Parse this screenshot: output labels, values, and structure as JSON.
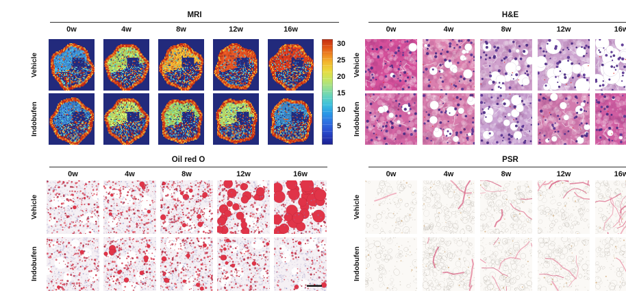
{
  "figure": {
    "timepoints": [
      "0w",
      "4w",
      "8w",
      "12w",
      "16w"
    ],
    "groups": [
      "Vehicle",
      "Indobufen"
    ],
    "panels": [
      {
        "id": "mri",
        "title": "MRI",
        "palette": {
          "background": "#222a7c",
          "ring_red": "#c22d16",
          "ring_orange": "#e1571c",
          "ring_yellow": "#f3c83c",
          "cyan_speckle": "#56c8d0"
        },
        "colorbar": {
          "tick_labels": [
            "30",
            "25",
            "20",
            "15",
            "10",
            "5"
          ]
        },
        "rows": [
          {
            "group": "Vehicle",
            "cells": [
              {
                "liver_color": "#3d8fd2"
              },
              {
                "liver_color": "#aed465"
              },
              {
                "liver_color": "#edae34"
              },
              {
                "liver_color": "#e05324"
              },
              {
                "liver_color": "#d63a1e"
              }
            ]
          },
          {
            "group": "Indobufen",
            "cells": [
              {
                "liver_color": "#3a7ec6"
              },
              {
                "liver_color": "#b8d868"
              },
              {
                "liver_color": "#9ed06a"
              },
              {
                "liver_color": "#b2d66a"
              },
              {
                "liver_color": "#3c86c4"
              }
            ]
          }
        ]
      },
      {
        "id": "he",
        "title": "H&E",
        "palette": {
          "nucleus": "#4c2c84",
          "vacuole": "#ffffff"
        },
        "rows": [
          {
            "group": "Vehicle",
            "cells": [
              {
                "base": "#d4509a",
                "vacuoles": 0.06,
                "vacuole_size": 0.8
              },
              {
                "base": "#db7fae",
                "vacuoles": 0.32,
                "vacuole_size": 0.9
              },
              {
                "base": "#cfa0cc",
                "vacuoles": 0.45,
                "vacuole_size": 1.1
              },
              {
                "base": "#cda4d0",
                "vacuoles": 0.5,
                "vacuole_size": 1.5
              },
              {
                "base": "#cfaad4",
                "vacuoles": 0.55,
                "vacuole_size": 1.8
              }
            ]
          },
          {
            "group": "Indobufen",
            "cells": [
              {
                "base": "#d467a4",
                "vacuoles": 0.2,
                "vacuole_size": 0.8
              },
              {
                "base": "#d77cac",
                "vacuoles": 0.3,
                "vacuole_size": 0.9
              },
              {
                "base": "#c9a2d2",
                "vacuoles": 0.4,
                "vacuole_size": 1.0
              },
              {
                "base": "#d27bae",
                "vacuoles": 0.28,
                "vacuole_size": 0.9
              },
              {
                "base": "#d05ea2",
                "vacuoles": 0.12,
                "vacuole_size": 0.8,
                "scale_bar": true
              }
            ]
          }
        ]
      },
      {
        "id": "oro",
        "title": "Oil red O",
        "palette": {
          "background": "#f5f0f4",
          "droplet": "#d64056",
          "counterstain": "#7e85bf"
        },
        "rows": [
          {
            "group": "Vehicle",
            "cells": [
              {
                "dots": 0.5,
                "big_n": 2,
                "big_r": 3
              },
              {
                "dots": 0.55,
                "big_n": 5,
                "big_r": 4
              },
              {
                "dots": 0.7,
                "big_n": 10,
                "big_r": 5
              },
              {
                "dots": 0.55,
                "big_n": 22,
                "big_r": 7
              },
              {
                "dots": 0.45,
                "big_n": 26,
                "big_r": 10
              }
            ]
          },
          {
            "group": "Indobufen",
            "cells": [
              {
                "dots": 0.45,
                "big_n": 2,
                "big_r": 3
              },
              {
                "dots": 0.5,
                "big_n": 12,
                "big_r": 5
              },
              {
                "dots": 0.6,
                "big_n": 10,
                "big_r": 4
              },
              {
                "dots": 0.5,
                "big_n": 8,
                "big_r": 5
              },
              {
                "dots": 0.3,
                "big_n": 3,
                "big_r": 4,
                "scale_bar": true
              }
            ]
          }
        ]
      },
      {
        "id": "psr",
        "title": "PSR",
        "palette": {
          "background": "#fbf9f6",
          "fiber": "#e1708e",
          "outline": "#b4aea5"
        },
        "rows": [
          {
            "group": "Vehicle",
            "cells": [
              {
                "fibers": 0.04,
                "outlines": 0.35
              },
              {
                "fibers": 0.15,
                "outlines": 0.85
              },
              {
                "fibers": 0.45,
                "outlines": 0.7
              },
              {
                "fibers": 0.5,
                "outlines": 0.6
              },
              {
                "fibers": 0.9,
                "outlines": 0.7
              }
            ]
          },
          {
            "group": "Indobufen",
            "cells": [
              {
                "fibers": 0.03,
                "outlines": 0.35
              },
              {
                "fibers": 0.3,
                "outlines": 0.9
              },
              {
                "fibers": 0.5,
                "outlines": 0.7
              },
              {
                "fibers": 0.28,
                "outlines": 0.6
              },
              {
                "fibers": 0.05,
                "outlines": 0.5,
                "scale_bar": true
              }
            ]
          }
        ]
      }
    ]
  }
}
